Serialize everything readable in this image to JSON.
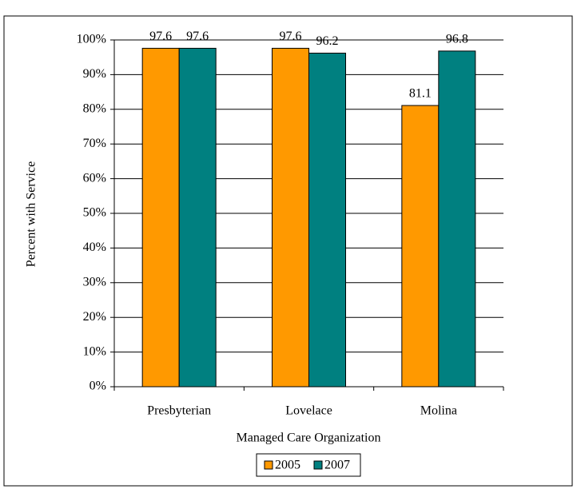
{
  "chart_data": {
    "type": "bar",
    "x_label": "Managed Care Organization",
    "y_label": "Percent with Service",
    "categories": [
      "Presbyterian",
      "Lovelace",
      "Molina"
    ],
    "series": [
      {
        "name": "2005",
        "color": "#ff9900",
        "values": [
          97.6,
          97.6,
          81.1
        ]
      },
      {
        "name": "2007",
        "color": "#008080",
        "values": [
          97.6,
          96.2,
          96.8
        ]
      }
    ],
    "ylim": [
      0,
      100
    ],
    "yticks": [
      {
        "value": 0,
        "label": "0%"
      },
      {
        "value": 10,
        "label": "10%"
      },
      {
        "value": 20,
        "label": "20%"
      },
      {
        "value": 30,
        "label": "30%"
      },
      {
        "value": 40,
        "label": "40%"
      },
      {
        "value": 50,
        "label": "50%"
      },
      {
        "value": 60,
        "label": "60%"
      },
      {
        "value": 70,
        "label": "70%"
      },
      {
        "value": 80,
        "label": "80%"
      },
      {
        "value": 90,
        "label": "90%"
      },
      {
        "value": 100,
        "label": "100%"
      }
    ],
    "grid": true,
    "legend": "bottom"
  }
}
